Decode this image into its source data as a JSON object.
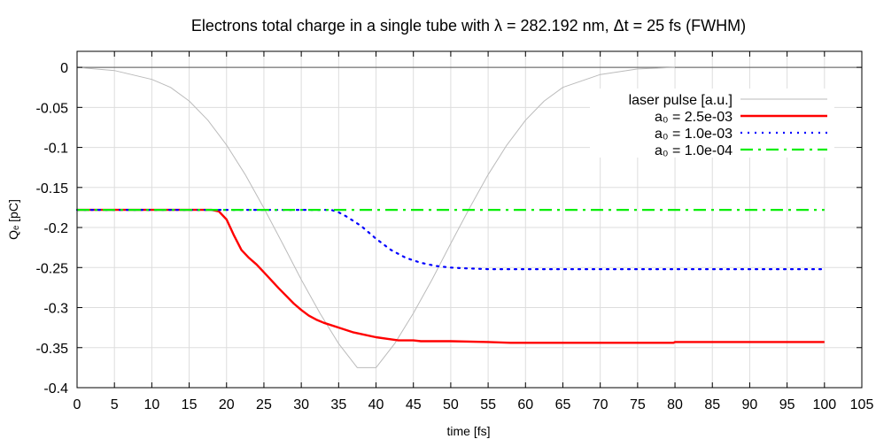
{
  "chart_data": {
    "type": "line",
    "title": "Electrons total charge in a single tube with λ = 282.192 nm, Δt = 25 fs (FWHM)",
    "xlabel": "time [fs]",
    "ylabel": "Qₑ [pC]",
    "xlim": [
      0,
      105
    ],
    "ylim": [
      -0.4,
      0.02
    ],
    "xticks": [
      0,
      5,
      10,
      15,
      20,
      25,
      30,
      35,
      40,
      45,
      50,
      55,
      60,
      65,
      70,
      75,
      80,
      85,
      90,
      95,
      100,
      105
    ],
    "yticks": [
      0,
      -0.05,
      -0.1,
      -0.15,
      -0.2,
      -0.25,
      -0.3,
      -0.35,
      -0.4
    ],
    "grid": true,
    "legend_position": "top-right",
    "series": [
      {
        "name": "laser pulse [a.u.]",
        "color": "#bbbbbb",
        "style": "solid",
        "x": [
          0,
          5,
          10,
          12.5,
          15,
          17.5,
          20,
          22.5,
          25,
          27.5,
          30,
          32.5,
          35,
          37.5,
          40,
          42.5,
          45,
          47.5,
          50,
          52.5,
          55,
          57.5,
          60,
          62.5,
          65,
          70,
          75,
          80
        ],
        "y": [
          0,
          -0.004,
          -0.015,
          -0.025,
          -0.042,
          -0.066,
          -0.097,
          -0.134,
          -0.176,
          -0.22,
          -0.265,
          -0.307,
          -0.345,
          -0.375,
          -0.375,
          -0.345,
          -0.307,
          -0.265,
          -0.22,
          -0.176,
          -0.134,
          -0.097,
          -0.066,
          -0.042,
          -0.025,
          -0.009,
          -0.002,
          0
        ]
      },
      {
        "name": "a₀ = 2.5e-03",
        "color": "#ff0000",
        "style": "solid",
        "x": [
          0,
          10,
          18,
          19,
          20,
          20.5,
          21,
          22,
          23,
          24,
          25,
          27,
          29,
          30,
          31,
          32,
          33,
          35,
          37,
          40,
          43,
          45,
          46,
          50,
          55,
          58,
          60,
          65,
          70,
          75,
          79.8,
          80,
          85,
          90,
          95,
          100
        ],
        "y": [
          -0.178,
          -0.178,
          -0.178,
          -0.18,
          -0.19,
          -0.2,
          -0.21,
          -0.228,
          -0.238,
          -0.246,
          -0.256,
          -0.276,
          -0.295,
          -0.303,
          -0.31,
          -0.315,
          -0.319,
          -0.325,
          -0.331,
          -0.337,
          -0.341,
          -0.341,
          -0.342,
          -0.342,
          -0.343,
          -0.344,
          -0.344,
          -0.344,
          -0.344,
          -0.344,
          -0.344,
          -0.343,
          -0.343,
          -0.343,
          -0.343,
          -0.343
        ]
      },
      {
        "name": "a₀ = 1.0e-03",
        "color": "#0000ff",
        "style": "dotted",
        "x": [
          0,
          10,
          20,
          30,
          34,
          35,
          36,
          38,
          40,
          42,
          44,
          46,
          48,
          50,
          52,
          55,
          60,
          70,
          80,
          90,
          100
        ],
        "y": [
          -0.178,
          -0.178,
          -0.178,
          -0.178,
          -0.178,
          -0.181,
          -0.186,
          -0.198,
          -0.214,
          -0.228,
          -0.238,
          -0.244,
          -0.248,
          -0.25,
          -0.251,
          -0.252,
          -0.252,
          -0.252,
          -0.252,
          -0.252,
          -0.252
        ]
      },
      {
        "name": "a₀ = 1.0e-04",
        "color": "#00ee00",
        "style": "dash-dot",
        "x": [
          0,
          100
        ],
        "y": [
          -0.178,
          -0.178
        ]
      }
    ]
  }
}
